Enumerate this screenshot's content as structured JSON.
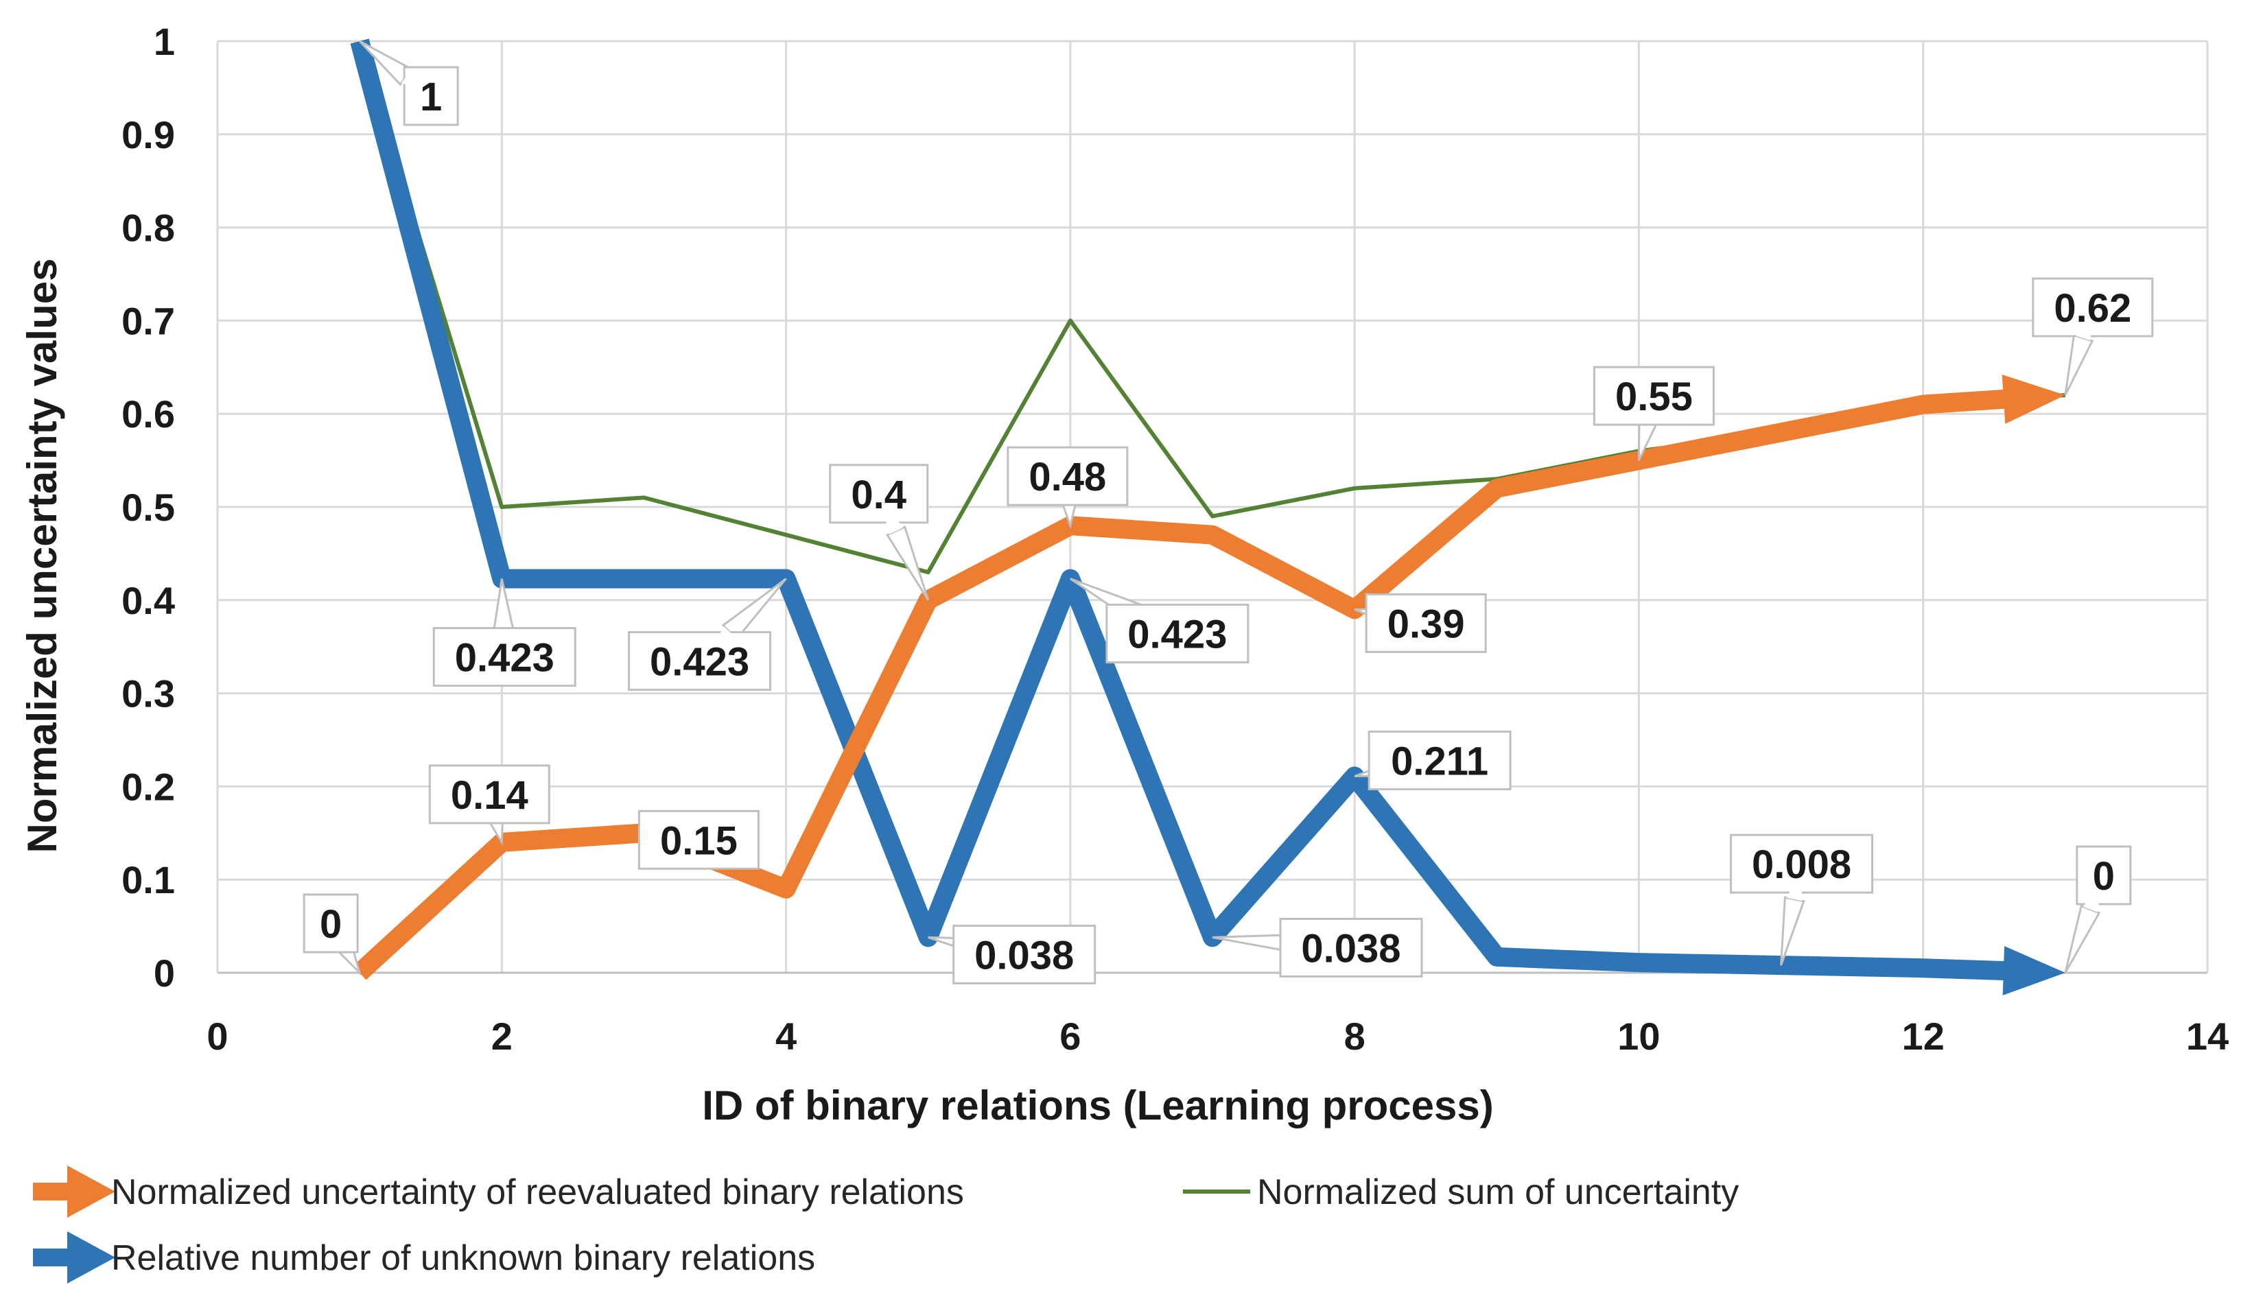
{
  "chart_data": {
    "type": "line",
    "title": "",
    "xlabel": "ID of binary relations (Learning process)",
    "ylabel": "Normalized uncertainty values",
    "xlim": [
      0,
      14
    ],
    "ylim": [
      0,
      1
    ],
    "x_ticks": [
      "0",
      "2",
      "4",
      "6",
      "8",
      "10",
      "12",
      "14"
    ],
    "y_ticks": [
      "0",
      "0.1",
      "0.2",
      "0.3",
      "0.4",
      "0.5",
      "0.6",
      "0.7",
      "0.8",
      "0.9",
      "1"
    ],
    "grid": true,
    "legend_position": "bottom",
    "colors": {
      "orange": "#ED7D31",
      "blue": "#2E75B6",
      "green": "#548235",
      "grid": "#d9d9d9"
    },
    "series": [
      {
        "name": "Normalized uncertainty of reevaluated binary relations",
        "color": "#ED7D31",
        "style": "arrow",
        "x": [
          1,
          2,
          3,
          4,
          5,
          6,
          7,
          8,
          9,
          10,
          11,
          12,
          13
        ],
        "values": [
          0,
          0.14,
          0.15,
          0.09,
          0.4,
          0.48,
          0.47,
          0.39,
          0.52,
          0.55,
          0.58,
          0.61,
          0.62
        ],
        "labels": [
          {
            "index": 0,
            "text": "0"
          },
          {
            "index": 1,
            "text": "0.14"
          },
          {
            "index": 2,
            "text": "0.15"
          },
          {
            "index": 4,
            "text": "0.4"
          },
          {
            "index": 5,
            "text": "0.48"
          },
          {
            "index": 7,
            "text": "0.39"
          },
          {
            "index": 9,
            "text": "0.55"
          },
          {
            "index": 12,
            "text": "0.62"
          }
        ]
      },
      {
        "name": "Normalized sum of uncertainty",
        "color": "#548235",
        "style": "line",
        "x": [
          1,
          2,
          3,
          4,
          5,
          6,
          7,
          8,
          9,
          10,
          11,
          12,
          13
        ],
        "values": [
          1,
          0.5,
          0.51,
          0.47,
          0.43,
          0.7,
          0.49,
          0.52,
          0.53,
          0.56,
          0.58,
          0.61,
          0.62
        ],
        "labels": []
      },
      {
        "name": "Relative number of unknown binary relations",
        "color": "#2E75B6",
        "style": "arrow",
        "x": [
          1,
          2,
          3,
          4,
          5,
          6,
          7,
          8,
          9,
          10,
          11,
          12,
          13
        ],
        "values": [
          1,
          0.423,
          0.423,
          0.423,
          0.038,
          0.423,
          0.038,
          0.211,
          0.017,
          0.011,
          0.008,
          0.005,
          0
        ],
        "labels": [
          {
            "index": 0,
            "text": "1"
          },
          {
            "index": 1,
            "text": "0.423"
          },
          {
            "index": 3,
            "text": "0.423"
          },
          {
            "index": 4,
            "text": "0.038"
          },
          {
            "index": 5,
            "text": "0.423"
          },
          {
            "index": 6,
            "text": "0.038"
          },
          {
            "index": 7,
            "text": "0.211"
          },
          {
            "index": 10,
            "text": "0.008"
          },
          {
            "index": 12,
            "text": "0"
          }
        ]
      }
    ]
  }
}
